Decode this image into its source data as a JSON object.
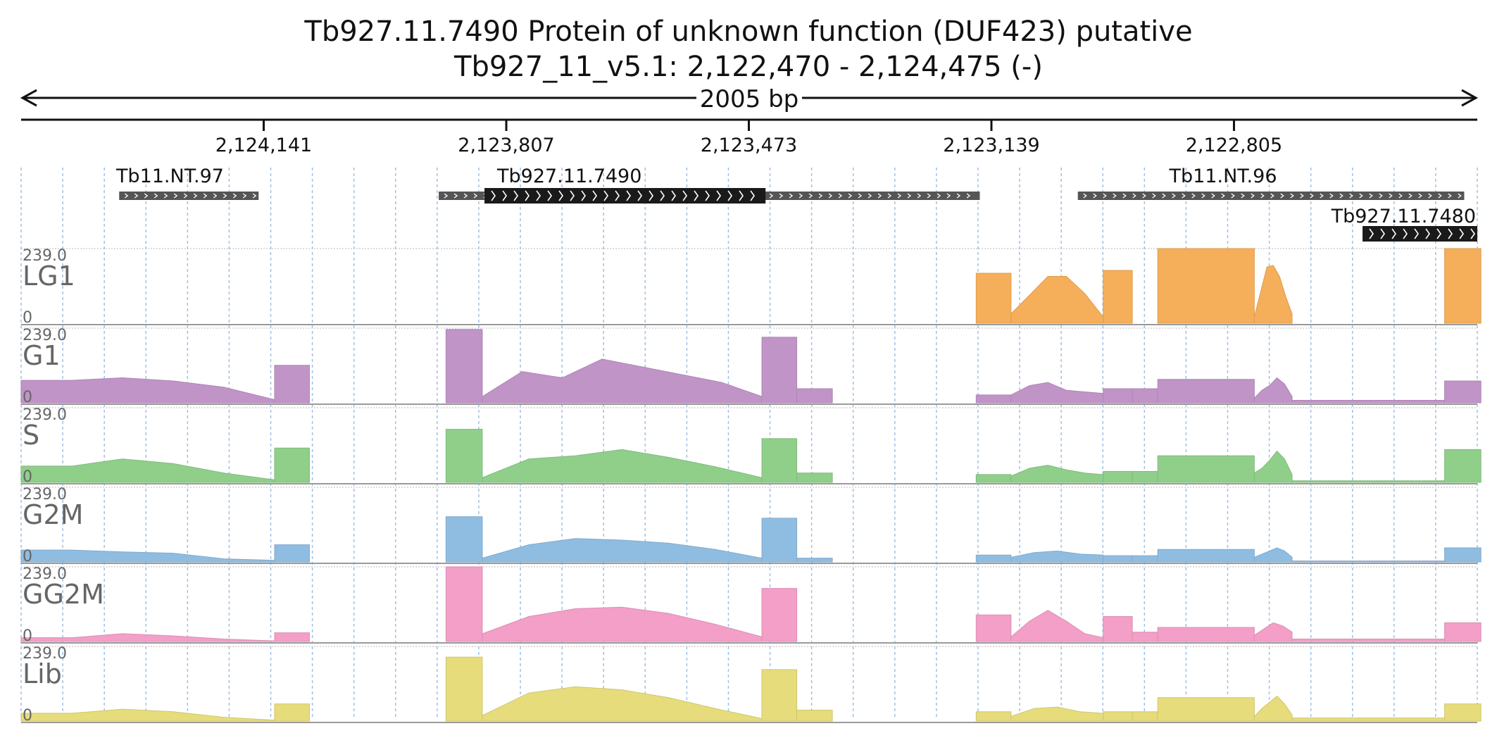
{
  "header": {
    "title": "Tb927.11.7490  Protein of unknown function (DUF423)  putative",
    "locus": "Tb927_11_v5.1: 2,122,470 - 2,124,475 (-)",
    "span": "2005 bp"
  },
  "chart_data": {
    "type": "area",
    "title": "Tb927.11.7490  Protein of unknown function (DUF423)  putative",
    "subtitle": "Tb927_11_v5.1: 2,122,470 - 2,124,475 (-)",
    "span_label": "2005 bp",
    "x_axis": {
      "reversed": true,
      "range": [
        2124475,
        2122470
      ],
      "ticks": [
        {
          "value": 2124141,
          "label": "2,124,141"
        },
        {
          "value": 2123807,
          "label": "2,123,807"
        },
        {
          "value": 2123473,
          "label": "2,123,473"
        },
        {
          "value": 2123139,
          "label": "2,123,139"
        },
        {
          "value": 2122805,
          "label": "2,122,805"
        }
      ],
      "grid": true
    },
    "features": [
      {
        "label": "Tb11.NT.97",
        "start": 2124340,
        "end": 2124148,
        "style": "utr",
        "label_pos": 2124270
      },
      {
        "label": "Tb927.11.7490",
        "start": 2123900,
        "end": 2123155,
        "style": "utr",
        "label_pos": 2123720,
        "cds": {
          "start": 2123837,
          "end": 2123450
        }
      },
      {
        "label": "Tb11.NT.96",
        "start": 2123020,
        "end": 2122488,
        "style": "utr",
        "label_pos": 2122820
      },
      {
        "label": "Tb927.11.7480",
        "start": 2122628,
        "end": 2122470,
        "style": "cds",
        "label_pos": 2122560,
        "label_row": 2
      }
    ],
    "y_range": [
      0,
      239.0
    ],
    "y_max_label": "239.0",
    "y_min_label": "0",
    "segments": [
      {
        "start": 2124475,
        "end": 2124126
      },
      {
        "start": 2124126,
        "end": 2124078
      },
      {
        "start": 2123890,
        "end": 2123840
      },
      {
        "start": 2123840,
        "end": 2123455
      },
      {
        "start": 2123455,
        "end": 2123407
      },
      {
        "start": 2123407,
        "end": 2123358
      },
      {
        "start": 2123160,
        "end": 2123112
      },
      {
        "start": 2123112,
        "end": 2122985
      },
      {
        "start": 2122985,
        "end": 2122945
      },
      {
        "start": 2122945,
        "end": 2122910
      },
      {
        "start": 2122910,
        "end": 2122777
      },
      {
        "start": 2122777,
        "end": 2122725
      },
      {
        "start": 2122725,
        "end": 2122515
      },
      {
        "start": 2122515,
        "end": 2122465
      }
    ],
    "series": [
      {
        "name": "LG1",
        "color": "#f5ae5a",
        "segments": [
          [
            0,
            0,
            0
          ],
          [
            0,
            0
          ],
          [
            0,
            0
          ],
          [
            0,
            0,
            0,
            0,
            0
          ],
          [
            0,
            0
          ],
          [
            0,
            0
          ],
          [
            160,
            160
          ],
          [
            30,
            90,
            150,
            150,
            95,
            20
          ],
          [
            169,
            169
          ],
          [
            0,
            0
          ],
          [
            239,
            239
          ],
          [
            20,
            100,
            180,
            185,
            150,
            85,
            30
          ],
          [
            0,
            0
          ],
          [
            239,
            239
          ]
        ]
      },
      {
        "name": "G1",
        "color": "#c194c8",
        "segments": [
          [
            72,
            72,
            80,
            70,
            50,
            10
          ],
          [
            120,
            120
          ],
          [
            235,
            235
          ],
          [
            20,
            100,
            80,
            140,
            115,
            90,
            65,
            20
          ],
          [
            210,
            210
          ],
          [
            45,
            45
          ],
          [
            25,
            25
          ],
          [
            25,
            55,
            65,
            40,
            35,
            30
          ],
          [
            45,
            45
          ],
          [
            45,
            45
          ],
          [
            75,
            75
          ],
          [
            15,
            40,
            55,
            80,
            60,
            20
          ],
          [
            8,
            8
          ],
          [
            70,
            70
          ]
        ]
      },
      {
        "name": "S",
        "color": "#8fcf8a",
        "segments": [
          [
            52,
            52,
            75,
            60,
            30,
            8
          ],
          [
            110,
            110
          ],
          [
            170,
            170
          ],
          [
            15,
            75,
            85,
            105,
            80,
            50,
            15
          ],
          [
            140,
            140
          ],
          [
            30,
            30
          ],
          [
            25,
            25
          ],
          [
            20,
            45,
            55,
            40,
            30,
            25
          ],
          [
            35,
            35
          ],
          [
            35,
            35
          ],
          [
            85,
            85
          ],
          [
            30,
            45,
            70,
            100,
            75,
            25
          ],
          [
            5,
            5
          ],
          [
            105,
            105
          ]
        ]
      },
      {
        "name": "G2M",
        "color": "#8fbde2",
        "segments": [
          [
            38,
            38,
            32,
            28,
            10,
            5
          ],
          [
            55,
            55
          ],
          [
            145,
            145
          ],
          [
            12,
            55,
            75,
            70,
            60,
            40,
            12
          ],
          [
            140,
            140
          ],
          [
            12,
            12
          ],
          [
            22,
            22
          ],
          [
            15,
            30,
            35,
            25,
            22
          ],
          [
            20,
            20
          ],
          [
            20,
            20
          ],
          [
            40,
            40
          ],
          [
            15,
            25,
            35,
            45,
            35,
            15
          ],
          [
            3,
            3
          ],
          [
            45,
            45
          ]
        ]
      },
      {
        "name": "GG2M",
        "color": "#f39fc7",
        "segments": [
          [
            12,
            12,
            25,
            18,
            8,
            2
          ],
          [
            28,
            28
          ],
          [
            239,
            239
          ],
          [
            25,
            80,
            105,
            110,
            90,
            55,
            15
          ],
          [
            170,
            170
          ],
          [
            0,
            0
          ],
          [
            85,
            85
          ],
          [
            15,
            65,
            100,
            65,
            25,
            12
          ],
          [
            80,
            80
          ],
          [
            30,
            30
          ],
          [
            45,
            45
          ],
          [
            20,
            40,
            60,
            50,
            30
          ],
          [
            8,
            8
          ],
          [
            60,
            60
          ]
        ]
      },
      {
        "name": "Lib",
        "color": "#e6dc7c",
        "segments": [
          [
            25,
            25,
            38,
            30,
            12,
            3
          ],
          [
            55,
            55
          ],
          [
            205,
            205
          ],
          [
            18,
            90,
            110,
            100,
            75,
            40,
            8
          ],
          [
            165,
            165
          ],
          [
            35,
            35
          ],
          [
            30,
            30
          ],
          [
            15,
            40,
            45,
            30,
            25
          ],
          [
            30,
            30
          ],
          [
            30,
            30
          ],
          [
            75,
            75
          ],
          [
            15,
            40,
            60,
            80,
            55,
            20
          ],
          [
            10,
            10
          ],
          [
            55,
            55
          ]
        ]
      }
    ]
  }
}
